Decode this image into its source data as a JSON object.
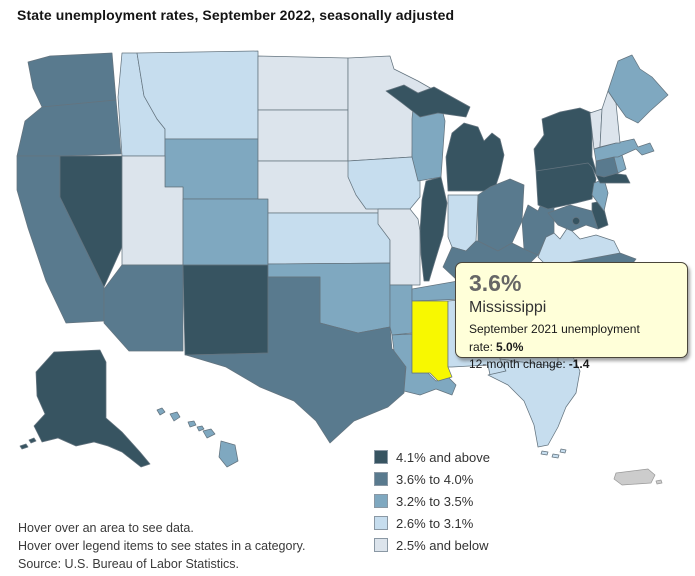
{
  "title": "State unemployment rates, September 2022, seasonally adjusted",
  "tooltip": {
    "rate": "3.6%",
    "state": "Mississippi",
    "prev_label": "September 2021 unemployment rate:",
    "prev_value": "5.0%",
    "change_label": "12-month change:",
    "change_value": "-1.4"
  },
  "legend": {
    "items": [
      {
        "label": "4.1% and above",
        "category": "c5"
      },
      {
        "label": "3.6% to 4.0%",
        "category": "c4"
      },
      {
        "label": "3.2% to 3.5%",
        "category": "c3"
      },
      {
        "label": "2.6% to 3.1%",
        "category": "c2"
      },
      {
        "label": "2.5% and below",
        "category": "c1"
      }
    ]
  },
  "colors": {
    "c5": "#375461",
    "c4": "#597a8e",
    "c3": "#7fa8c0",
    "c2": "#c6ddee",
    "c1": "#dce4ec",
    "highlight": "#f8f800",
    "no_data": "#cccccc",
    "border": "#64747f",
    "no_data_border": "#999999"
  },
  "map": {
    "highlighted_state": "MS",
    "states": [
      {
        "id": "WA",
        "name": "Washington",
        "category": "c4"
      },
      {
        "id": "OR",
        "name": "Oregon",
        "category": "c4"
      },
      {
        "id": "CA",
        "name": "California",
        "category": "c4"
      },
      {
        "id": "NV",
        "name": "Nevada",
        "category": "c5"
      },
      {
        "id": "ID",
        "name": "Idaho",
        "category": "c2"
      },
      {
        "id": "MT",
        "name": "Montana",
        "category": "c2"
      },
      {
        "id": "WY",
        "name": "Wyoming",
        "category": "c3"
      },
      {
        "id": "UT",
        "name": "Utah",
        "category": "c1"
      },
      {
        "id": "CO",
        "name": "Colorado",
        "category": "c3"
      },
      {
        "id": "AZ",
        "name": "Arizona",
        "category": "c4"
      },
      {
        "id": "NM",
        "name": "New Mexico",
        "category": "c5"
      },
      {
        "id": "ND",
        "name": "North Dakota",
        "category": "c1"
      },
      {
        "id": "SD",
        "name": "South Dakota",
        "category": "c1"
      },
      {
        "id": "NE",
        "name": "Nebraska",
        "category": "c1"
      },
      {
        "id": "KS",
        "name": "Kansas",
        "category": "c2"
      },
      {
        "id": "OK",
        "name": "Oklahoma",
        "category": "c3"
      },
      {
        "id": "TX",
        "name": "Texas",
        "category": "c4"
      },
      {
        "id": "MN",
        "name": "Minnesota",
        "category": "c1"
      },
      {
        "id": "IA",
        "name": "Iowa",
        "category": "c2"
      },
      {
        "id": "MO",
        "name": "Missouri",
        "category": "c1"
      },
      {
        "id": "AR",
        "name": "Arkansas",
        "category": "c3"
      },
      {
        "id": "LA",
        "name": "Louisiana",
        "category": "c3"
      },
      {
        "id": "WI",
        "name": "Wisconsin",
        "category": "c3"
      },
      {
        "id": "IL",
        "name": "Illinois",
        "category": "c5"
      },
      {
        "id": "MI",
        "name": "Michigan",
        "category": "c5"
      },
      {
        "id": "IN",
        "name": "Indiana",
        "category": "c2"
      },
      {
        "id": "OH",
        "name": "Ohio",
        "category": "c4"
      },
      {
        "id": "KY",
        "name": "Kentucky",
        "category": "c4"
      },
      {
        "id": "TN",
        "name": "Tennessee",
        "category": "c3"
      },
      {
        "id": "MS",
        "name": "Mississippi",
        "category": "c4"
      },
      {
        "id": "AL",
        "name": "Alabama",
        "category": "c2"
      },
      {
        "id": "GA",
        "name": "Georgia",
        "category": "c2"
      },
      {
        "id": "FL",
        "name": "Florida",
        "category": "c2"
      },
      {
        "id": "SC",
        "name": "South Carolina",
        "category": "c3"
      },
      {
        "id": "NC",
        "name": "North Carolina",
        "category": "c4"
      },
      {
        "id": "VA",
        "name": "Virginia",
        "category": "c2"
      },
      {
        "id": "WV",
        "name": "West Virginia",
        "category": "c4"
      },
      {
        "id": "MD",
        "name": "Maryland",
        "category": "c4"
      },
      {
        "id": "DE",
        "name": "Delaware",
        "category": "c5"
      },
      {
        "id": "DC",
        "name": "District of Columbia",
        "category": "c5"
      },
      {
        "id": "PA",
        "name": "Pennsylvania",
        "category": "c5"
      },
      {
        "id": "NJ",
        "name": "New Jersey",
        "category": "c3"
      },
      {
        "id": "NY",
        "name": "New York",
        "category": "c5"
      },
      {
        "id": "CT",
        "name": "Connecticut",
        "category": "c4"
      },
      {
        "id": "RI",
        "name": "Rhode Island",
        "category": "c3"
      },
      {
        "id": "MA",
        "name": "Massachusetts",
        "category": "c3"
      },
      {
        "id": "VT",
        "name": "Vermont",
        "category": "c1"
      },
      {
        "id": "NH",
        "name": "New Hampshire",
        "category": "c1"
      },
      {
        "id": "ME",
        "name": "Maine",
        "category": "c3"
      },
      {
        "id": "AK",
        "name": "Alaska",
        "category": "c5"
      },
      {
        "id": "HI",
        "name": "Hawaii",
        "category": "c3"
      },
      {
        "id": "PR",
        "name": "Puerto Rico",
        "category": "none"
      }
    ]
  },
  "notes": {
    "line1": "Hover over an area to see data.",
    "line2": "Hover over legend items to see states in a category.",
    "line3": "Source: U.S. Bureau of Labor Statistics."
  }
}
